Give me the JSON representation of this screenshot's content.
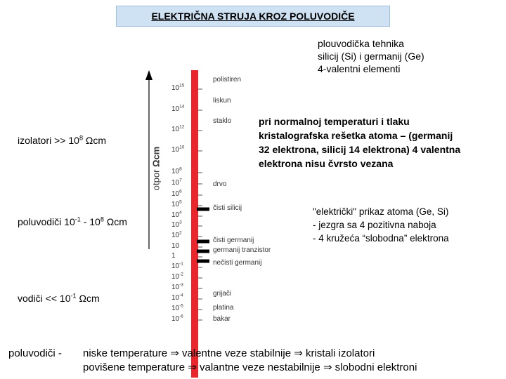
{
  "title": "ELEKTRIČNA STRUJA KROZ POLUVODIČE",
  "intro": [
    "plouvodička tehnika",
    "silicij (Si) i germanij (Ge)",
    "4-valentni elementi"
  ],
  "axis_label": [
    "otpor ",
    "Ωcm"
  ],
  "ranges": [
    [
      "izolatori >> 10",
      "8",
      " Ωcm"
    ],
    [
      "poluvodiči 10",
      "-1",
      " - 10",
      "8",
      " Ωcm"
    ],
    [
      "vodiči  << 10",
      "-1",
      " Ωcm"
    ]
  ],
  "scale": [
    [
      "10",
      "15"
    ],
    [
      "10",
      "14"
    ],
    [
      "10",
      "12"
    ],
    [
      "10",
      "10"
    ],
    [
      "10",
      "8"
    ],
    [
      "10",
      "7"
    ],
    [
      "10",
      "6"
    ],
    [
      "10",
      "5"
    ],
    [
      "10",
      "4"
    ],
    [
      "10",
      "3"
    ],
    [
      "10",
      "2"
    ],
    [
      "10"
    ],
    [
      "1"
    ],
    [
      "10",
      "-1"
    ],
    [
      "10",
      "-2"
    ],
    [
      "10",
      "-3"
    ],
    [
      "10",
      "-4"
    ],
    [
      "10",
      "-5"
    ],
    [
      "10",
      "-6"
    ]
  ],
  "materials": [
    "polistiren",
    "liskun",
    "staklo",
    "drvo",
    "čisti silicij",
    "čisti germanij",
    "germanij tranzistor",
    "nečisti germanij",
    "grijači",
    "platina",
    "bakar"
  ],
  "lattice_note": [
    "pri normalnoj temperaturi i tlaku",
    "kristalografska rešetka atoma – (germanij",
    "32 elektrona, silicij 14 elektrona) 4 valentna",
    "elektrona nisu čvrsto vezana"
  ],
  "atom_model": [
    "\"električki\" prikaz atoma (Ge, Si)",
    "- jezgra sa 4 pozitivna naboja",
    "- 4 kružeća “slobodna” elektrona"
  ],
  "conclusion": {
    "label": "poluvodiči  -",
    "lines": [
      "niske temperature ⇒ valentne veze stabilnije ⇒ kristali izolatori",
      "povišene temperature ⇒ valantne veze nestabilnije ⇒ slobodni elektroni"
    ]
  }
}
